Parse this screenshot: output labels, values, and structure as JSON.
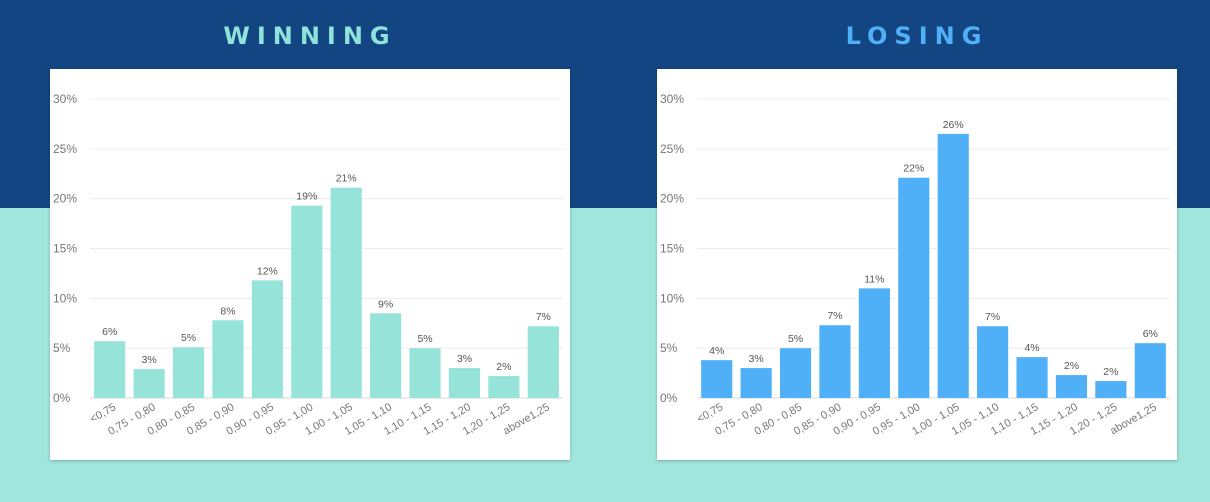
{
  "headings": {
    "winning": "WINNING",
    "losing": "LOSING"
  },
  "colors": {
    "top_background": "#124582",
    "bottom_background": "#a1e6dd",
    "winning_heading": "#8fe3da",
    "losing_heading": "#4fb0f8",
    "winning_bar": "#96e3da",
    "losing_bar": "#4fb0f8"
  },
  "chart_data": [
    {
      "type": "bar",
      "title": "WINNING",
      "categories": [
        "<0,75",
        "0,75 - 0,80",
        "0,80 - 0,85",
        "0,85 - 0,90",
        "0,90 - 0,95",
        "0,95 - 1,00",
        "1,00 - 1,05",
        "1,05 - 1,10",
        "1,10 - 1,15",
        "1,15 - 1,20",
        "1,20 - 1,25",
        "above1,25"
      ],
      "values": [
        5.7,
        2.9,
        5.1,
        7.8,
        11.8,
        19.3,
        21.1,
        8.5,
        5.0,
        3.0,
        2.2,
        7.2
      ],
      "value_labels": [
        "6%",
        "3%",
        "5%",
        "8%",
        "12%",
        "19%",
        "21%",
        "9%",
        "5%",
        "3%",
        "2%",
        "7%"
      ],
      "y_ticks": [
        "0%",
        "5%",
        "10%",
        "15%",
        "20%",
        "25%",
        "30%"
      ],
      "ylim": [
        0,
        30
      ],
      "grid": true,
      "legend": false
    },
    {
      "type": "bar",
      "title": "LOSING",
      "categories": [
        "<0,75",
        "0,75 - 0,80",
        "0,80 - 0,85",
        "0,85 - 0,90",
        "0,90 - 0,95",
        "0,95 - 1,00",
        "1,00 - 1,05",
        "1,05 - 1,10",
        "1,10 - 1,15",
        "1,15 - 1,20",
        "1,20 - 1,25",
        "above1,25"
      ],
      "values": [
        3.8,
        3.0,
        5.0,
        7.3,
        11.0,
        22.1,
        26.5,
        7.2,
        4.1,
        2.3,
        1.7,
        5.5
      ],
      "value_labels": [
        "4%",
        "3%",
        "5%",
        "7%",
        "11%",
        "22%",
        "26%",
        "7%",
        "4%",
        "2%",
        "2%",
        "6%"
      ],
      "y_ticks": [
        "0%",
        "5%",
        "10%",
        "15%",
        "20%",
        "25%",
        "30%"
      ],
      "ylim": [
        0,
        30
      ],
      "grid": true,
      "legend": false
    }
  ]
}
